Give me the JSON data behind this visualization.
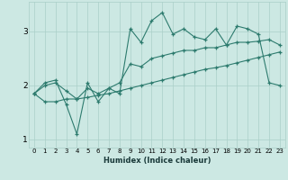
{
  "xlabel": "Humidex (Indice chaleur)",
  "x": [
    0,
    1,
    2,
    3,
    4,
    5,
    6,
    7,
    8,
    9,
    10,
    11,
    12,
    13,
    14,
    15,
    16,
    17,
    18,
    19,
    20,
    21,
    22,
    23
  ],
  "line_max": [
    1.85,
    2.05,
    2.1,
    1.65,
    1.1,
    2.05,
    1.7,
    1.95,
    1.85,
    3.05,
    2.8,
    3.2,
    3.35,
    2.95,
    3.05,
    2.9,
    2.85,
    3.05,
    2.75,
    3.1,
    3.05,
    2.95,
    2.05,
    2.0
  ],
  "line_mean": [
    1.85,
    2.0,
    2.05,
    1.9,
    1.75,
    1.95,
    1.85,
    1.95,
    2.05,
    2.4,
    2.35,
    2.5,
    2.55,
    2.6,
    2.65,
    2.65,
    2.7,
    2.7,
    2.75,
    2.8,
    2.8,
    2.82,
    2.85,
    2.75
  ],
  "line_min": [
    1.85,
    1.7,
    1.7,
    1.75,
    1.75,
    1.78,
    1.82,
    1.85,
    1.9,
    1.95,
    2.0,
    2.05,
    2.1,
    2.15,
    2.2,
    2.25,
    2.3,
    2.33,
    2.37,
    2.42,
    2.47,
    2.52,
    2.57,
    2.62
  ],
  "line_color": "#2d7b6e",
  "bg_color": "#cce8e3",
  "grid_color": "#aacfc8",
  "ylim": [
    0.85,
    3.55
  ],
  "yticks": [
    1,
    2,
    3
  ],
  "xlim": [
    -0.5,
    23.5
  ],
  "xtick_labels": [
    "0",
    "1",
    "2",
    "3",
    "4",
    "5",
    "6",
    "7",
    "8",
    "9",
    "10",
    "11",
    "12",
    "13",
    "14",
    "15",
    "16",
    "17",
    "18",
    "19",
    "20",
    "21",
    "22",
    "23"
  ]
}
